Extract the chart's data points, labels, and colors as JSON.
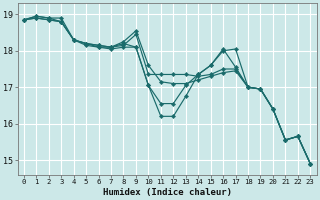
{
  "background_color": "#cce8e8",
  "grid_color": "#ffffff",
  "line_color": "#1a6b6b",
  "xlabel": "Humidex (Indice chaleur)",
  "xlim": [
    -0.5,
    23.5
  ],
  "ylim": [
    14.6,
    19.3
  ],
  "yticks": [
    15,
    16,
    17,
    18,
    19
  ],
  "xticks": [
    0,
    1,
    2,
    3,
    4,
    5,
    6,
    7,
    8,
    9,
    10,
    11,
    12,
    13,
    14,
    15,
    16,
    17,
    18,
    19,
    20,
    21,
    22,
    23
  ],
  "series": [
    [
      18.85,
      18.95,
      18.9,
      18.9,
      18.3,
      18.2,
      18.15,
      18.1,
      18.2,
      18.1,
      17.05,
      16.2,
      16.2,
      16.75,
      17.35,
      17.6,
      18.05,
      17.55,
      17.0,
      16.95,
      16.4,
      15.55,
      15.65,
      14.9
    ],
    [
      18.85,
      18.95,
      18.9,
      18.8,
      18.3,
      18.2,
      18.15,
      18.1,
      18.25,
      18.55,
      17.6,
      17.15,
      17.1,
      17.1,
      17.2,
      17.3,
      17.4,
      17.45,
      17.0,
      16.95,
      16.4,
      15.55,
      15.65,
      14.9
    ],
    [
      18.85,
      18.9,
      18.85,
      18.8,
      18.3,
      18.2,
      18.1,
      18.1,
      18.15,
      18.45,
      17.35,
      17.35,
      17.35,
      17.35,
      17.3,
      17.35,
      17.5,
      17.5,
      17.0,
      16.95,
      16.4,
      15.55,
      15.65,
      14.9
    ],
    [
      18.85,
      18.9,
      18.85,
      18.8,
      18.3,
      18.15,
      18.1,
      18.05,
      18.1,
      18.1,
      17.05,
      16.55,
      16.55,
      17.05,
      17.35,
      17.6,
      18.0,
      18.05,
      17.0,
      16.95,
      16.4,
      15.55,
      15.65,
      14.9
    ]
  ]
}
